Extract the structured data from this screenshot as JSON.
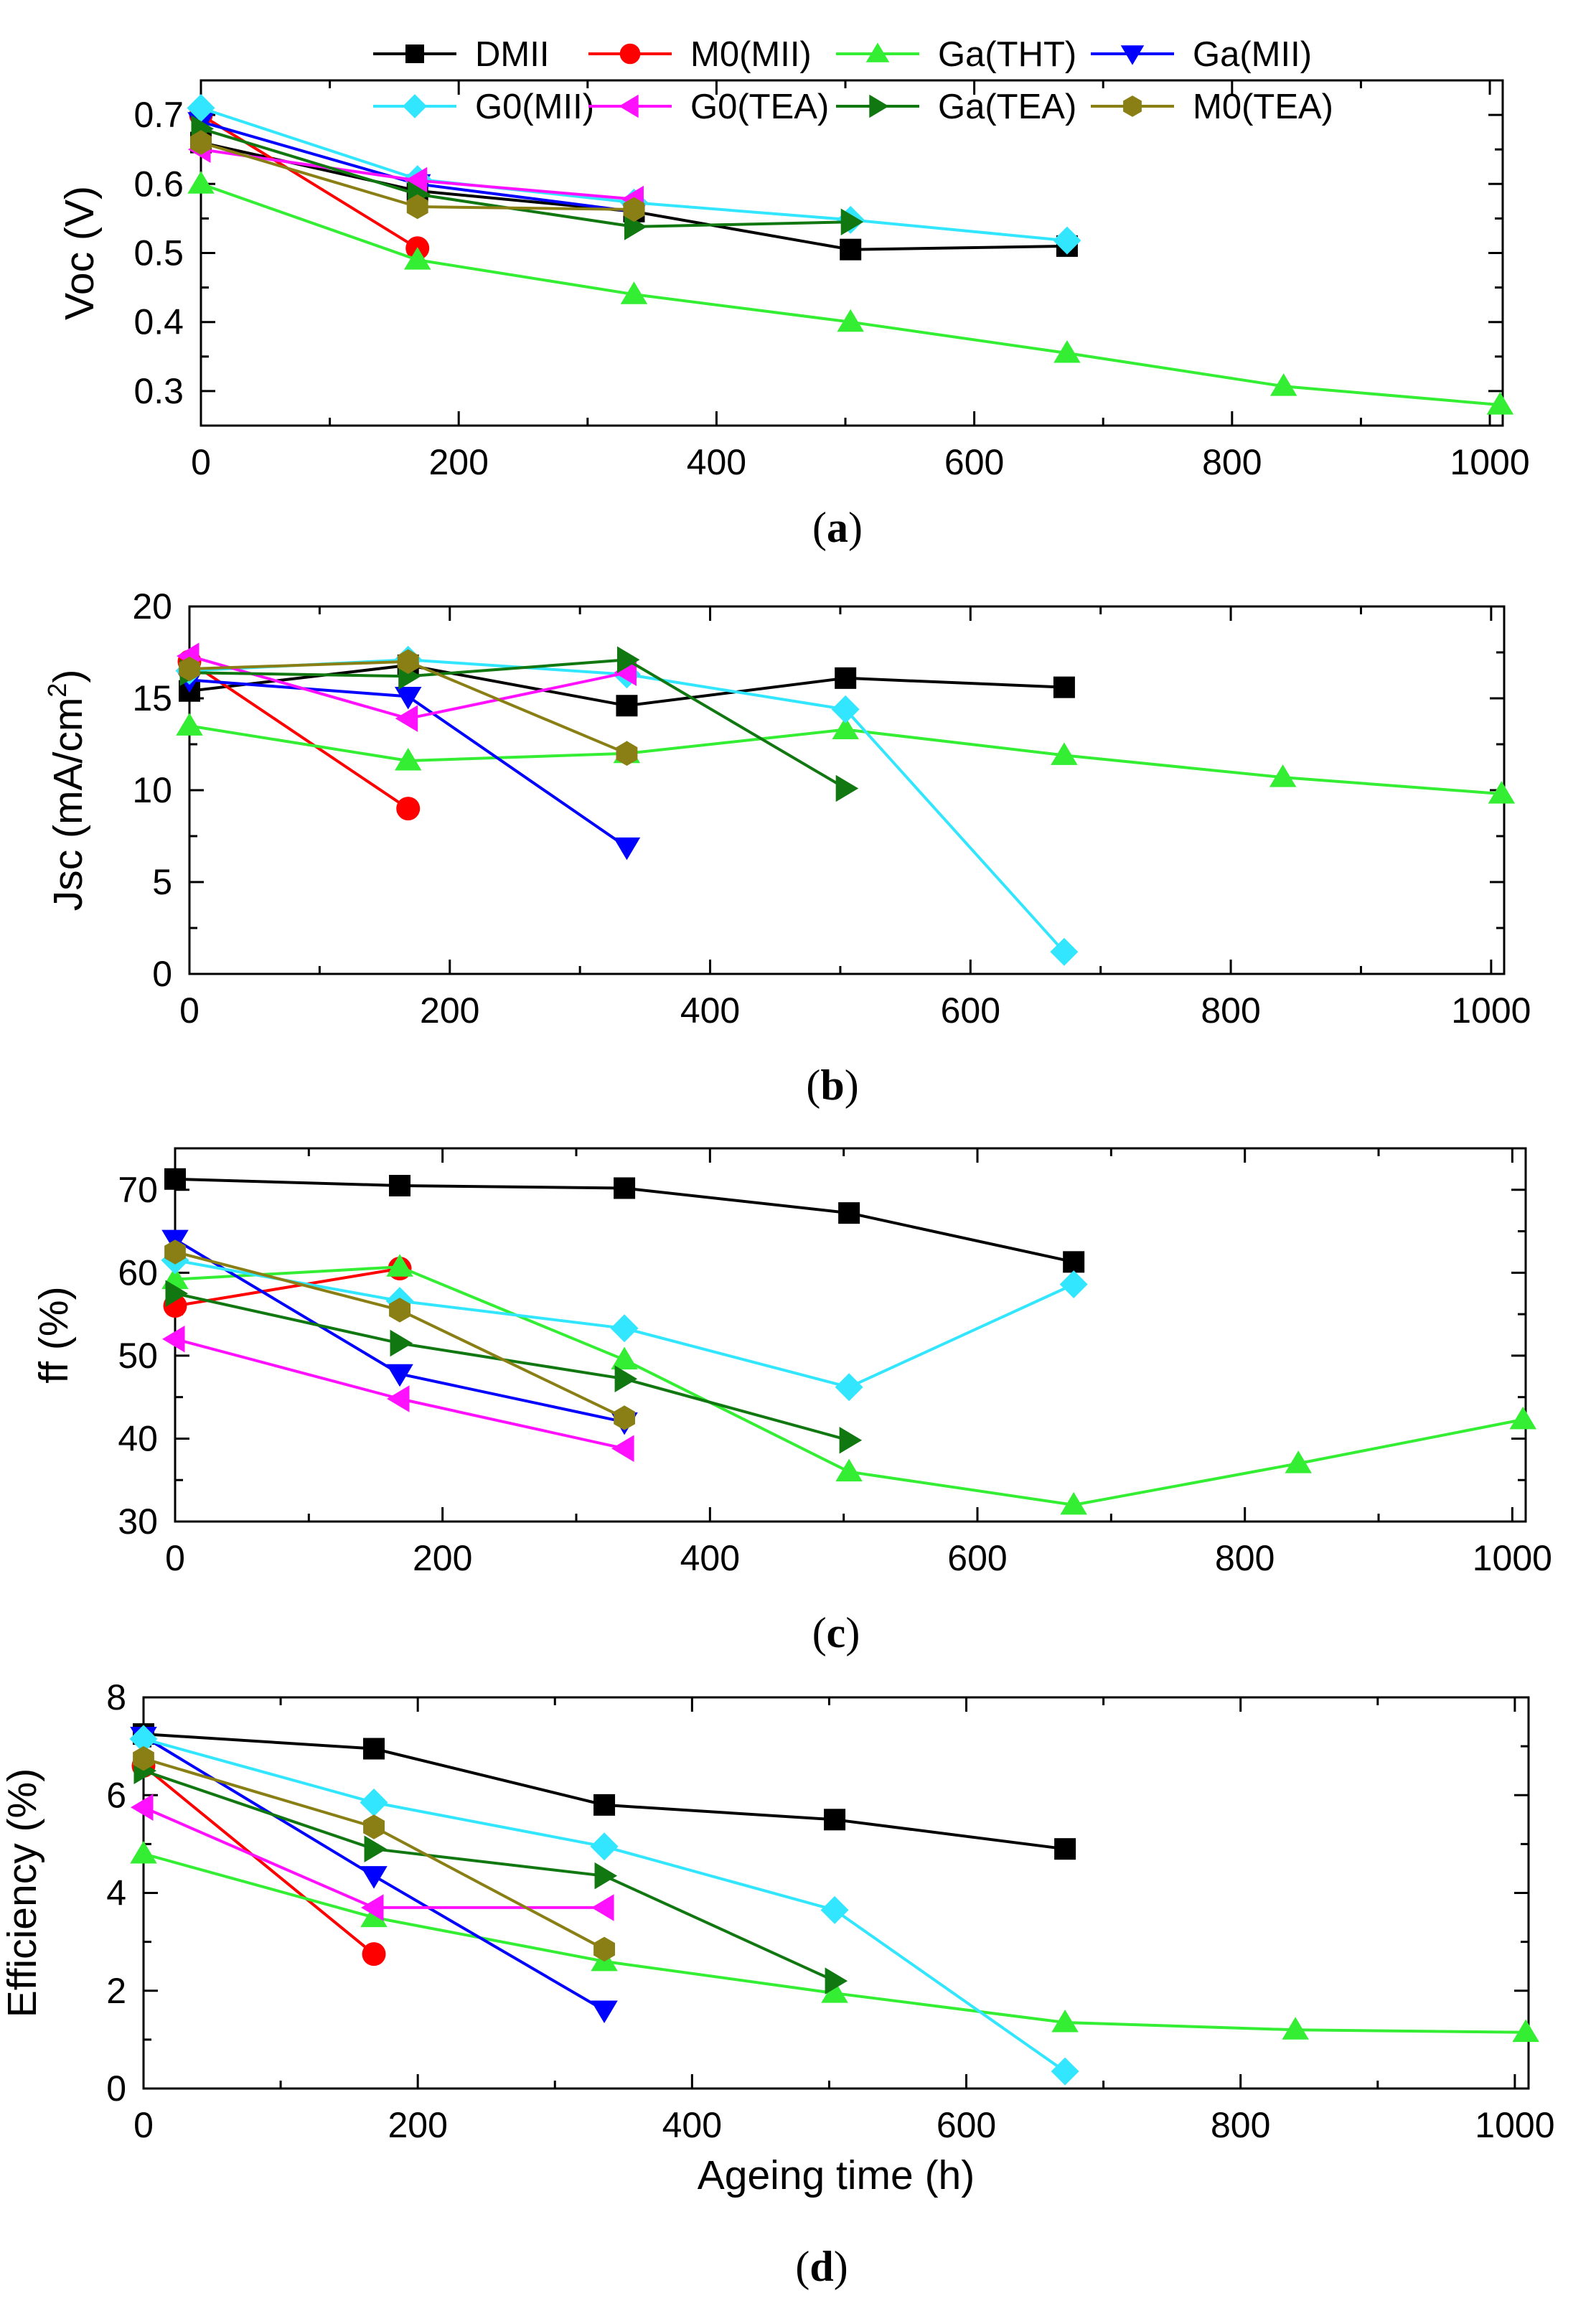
{
  "legend": [
    {
      "name": "DMII",
      "color": "#000000",
      "marker": "square"
    },
    {
      "name": "M0(MII)",
      "color": "#ff0000",
      "marker": "circle"
    },
    {
      "name": "Ga(THT)",
      "color": "#33ee33",
      "marker": "triangle-up"
    },
    {
      "name": "Ga(MII)",
      "color": "#0000ff",
      "marker": "triangle-down"
    },
    {
      "name": "G0(MII)",
      "color": "#33e6ff",
      "marker": "diamond"
    },
    {
      "name": "G0(TEA)",
      "color": "#ff11ff",
      "marker": "triangle-left"
    },
    {
      "name": "Ga(TEA)",
      "color": "#117711",
      "marker": "triangle-right"
    },
    {
      "name": "M0(TEA)",
      "color": "#8a7f14",
      "marker": "hexagon"
    }
  ],
  "chart_data": [
    {
      "type": "line",
      "panel_label": "(a)",
      "xlabel": "",
      "ylabel": "Voc (V)",
      "xlim": [
        0,
        1010
      ],
      "ylim": [
        0.25,
        0.75
      ],
      "xticks": [
        0,
        200,
        400,
        600,
        800,
        1000
      ],
      "yticks": [
        0.3,
        0.4,
        0.5,
        0.6,
        0.7
      ],
      "series": [
        {
          "name": "DMII",
          "x": [
            0,
            168,
            336,
            504,
            672
          ],
          "y": [
            0.66,
            0.59,
            0.56,
            0.505,
            0.51
          ]
        },
        {
          "name": "M0(MII)",
          "x": [
            0,
            168
          ],
          "y": [
            0.7,
            0.507
          ]
        },
        {
          "name": "Ga(THT)",
          "x": [
            0,
            168,
            336,
            504,
            672,
            840,
            1008
          ],
          "y": [
            0.6,
            0.49,
            0.44,
            0.4,
            0.355,
            0.307,
            0.28
          ]
        },
        {
          "name": "Ga(MII)",
          "x": [
            0,
            168,
            336
          ],
          "y": [
            0.69,
            0.6,
            0.56
          ]
        },
        {
          "name": "G0(MII)",
          "x": [
            0,
            168,
            336,
            504,
            672
          ],
          "y": [
            0.71,
            0.607,
            0.573,
            0.548,
            0.518
          ]
        },
        {
          "name": "G0(TEA)",
          "x": [
            0,
            168,
            336
          ],
          "y": [
            0.65,
            0.605,
            0.578
          ]
        },
        {
          "name": "Ga(TEA)",
          "x": [
            0,
            168,
            336,
            504
          ],
          "y": [
            0.68,
            0.585,
            0.538,
            0.545
          ]
        },
        {
          "name": "M0(TEA)",
          "x": [
            0,
            168,
            336
          ],
          "y": [
            0.66,
            0.567,
            0.563
          ]
        }
      ]
    },
    {
      "type": "line",
      "panel_label": "(b)",
      "xlabel": "",
      "ylabel": "Jsc (mA/cm",
      "ylabel_sup": "2",
      "ylabel_end": ")",
      "xlim": [
        0,
        1010
      ],
      "ylim": [
        0,
        20
      ],
      "xticks": [
        0,
        200,
        400,
        600,
        800,
        1000
      ],
      "yticks": [
        0,
        5,
        10,
        15,
        20
      ],
      "series": [
        {
          "name": "DMII",
          "x": [
            0,
            168,
            336,
            504,
            672
          ],
          "y": [
            15.4,
            16.8,
            14.6,
            16.1,
            15.6
          ]
        },
        {
          "name": "M0(MII)",
          "x": [
            0,
            168
          ],
          "y": [
            17.0,
            9.0
          ]
        },
        {
          "name": "Ga(THT)",
          "x": [
            0,
            168,
            336,
            504,
            672,
            840,
            1008
          ],
          "y": [
            13.5,
            11.6,
            12.0,
            13.3,
            11.9,
            10.7,
            9.8
          ]
        },
        {
          "name": "Ga(MII)",
          "x": [
            0,
            168,
            336
          ],
          "y": [
            16.0,
            15.1,
            6.9
          ]
        },
        {
          "name": "G0(MII)",
          "x": [
            0,
            168,
            336,
            504,
            672
          ],
          "y": [
            16.5,
            17.1,
            16.3,
            14.4,
            1.2
          ]
        },
        {
          "name": "G0(TEA)",
          "x": [
            0,
            168,
            336
          ],
          "y": [
            17.3,
            13.9,
            16.4
          ]
        },
        {
          "name": "Ga(TEA)",
          "x": [
            0,
            168,
            336,
            504
          ],
          "y": [
            16.4,
            16.2,
            17.1,
            10.1
          ]
        },
        {
          "name": "M0(TEA)",
          "x": [
            0,
            168,
            336
          ],
          "y": [
            16.6,
            17.0,
            12.0
          ]
        }
      ]
    },
    {
      "type": "line",
      "panel_label": "(c)",
      "xlabel": "",
      "ylabel": "ff (%)",
      "xlim": [
        0,
        1010
      ],
      "ylim": [
        30,
        75
      ],
      "xticks": [
        0,
        200,
        400,
        600,
        800,
        1000
      ],
      "yticks": [
        30,
        40,
        50,
        60,
        70
      ],
      "series": [
        {
          "name": "DMII",
          "x": [
            0,
            168,
            336,
            504,
            672
          ],
          "y": [
            71.3,
            70.5,
            70.2,
            67.2,
            61.3
          ]
        },
        {
          "name": "M0(MII)",
          "x": [
            0,
            168
          ],
          "y": [
            56.0,
            60.5
          ]
        },
        {
          "name": "Ga(THT)",
          "x": [
            0,
            168,
            336,
            504,
            672,
            840,
            1008
          ],
          "y": [
            59.2,
            60.7,
            49.5,
            36.0,
            32.0,
            37.0,
            42.3
          ]
        },
        {
          "name": "Ga(MII)",
          "x": [
            0,
            168,
            336
          ],
          "y": [
            64.0,
            47.8,
            42.0
          ]
        },
        {
          "name": "G0(MII)",
          "x": [
            0,
            168,
            336,
            504,
            672
          ],
          "y": [
            61.5,
            56.6,
            53.3,
            46.2,
            58.6
          ]
        },
        {
          "name": "G0(TEA)",
          "x": [
            0,
            168,
            336
          ],
          "y": [
            52.0,
            44.8,
            38.8
          ]
        },
        {
          "name": "Ga(TEA)",
          "x": [
            0,
            168,
            336,
            504
          ],
          "y": [
            57.5,
            51.5,
            47.2,
            39.8
          ]
        },
        {
          "name": "M0(TEA)",
          "x": [
            0,
            168,
            336
          ],
          "y": [
            62.5,
            55.5,
            42.5
          ]
        }
      ]
    },
    {
      "type": "line",
      "panel_label": "(d)",
      "xlabel": "Ageing time (h)",
      "ylabel": "Efficiency (%)",
      "xlim": [
        0,
        1010
      ],
      "ylim": [
        0,
        8
      ],
      "xticks": [
        0,
        200,
        400,
        600,
        800,
        1000
      ],
      "yticks": [
        0,
        2,
        4,
        6,
        8
      ],
      "series": [
        {
          "name": "DMII",
          "x": [
            0,
            168,
            336,
            504,
            672
          ],
          "y": [
            7.25,
            6.95,
            5.8,
            5.5,
            4.9
          ]
        },
        {
          "name": "M0(MII)",
          "x": [
            0,
            168
          ],
          "y": [
            6.6,
            2.75
          ]
        },
        {
          "name": "Ga(THT)",
          "x": [
            0,
            168,
            336,
            504,
            672,
            840,
            1008
          ],
          "y": [
            4.8,
            3.5,
            2.6,
            1.95,
            1.35,
            1.2,
            1.15
          ]
        },
        {
          "name": "Ga(MII)",
          "x": [
            0,
            168,
            336
          ],
          "y": [
            7.2,
            4.35,
            1.6
          ]
        },
        {
          "name": "G0(MII)",
          "x": [
            0,
            168,
            336,
            504,
            672
          ],
          "y": [
            7.15,
            5.85,
            4.95,
            3.65,
            0.35
          ]
        },
        {
          "name": "G0(TEA)",
          "x": [
            0,
            168,
            336
          ],
          "y": [
            5.75,
            3.7,
            3.7
          ]
        },
        {
          "name": "Ga(TEA)",
          "x": [
            0,
            168,
            336,
            504
          ],
          "y": [
            6.5,
            4.9,
            4.35,
            2.2
          ]
        },
        {
          "name": "M0(TEA)",
          "x": [
            0,
            168,
            336
          ],
          "y": [
            6.75,
            5.35,
            2.85
          ]
        }
      ]
    }
  ]
}
